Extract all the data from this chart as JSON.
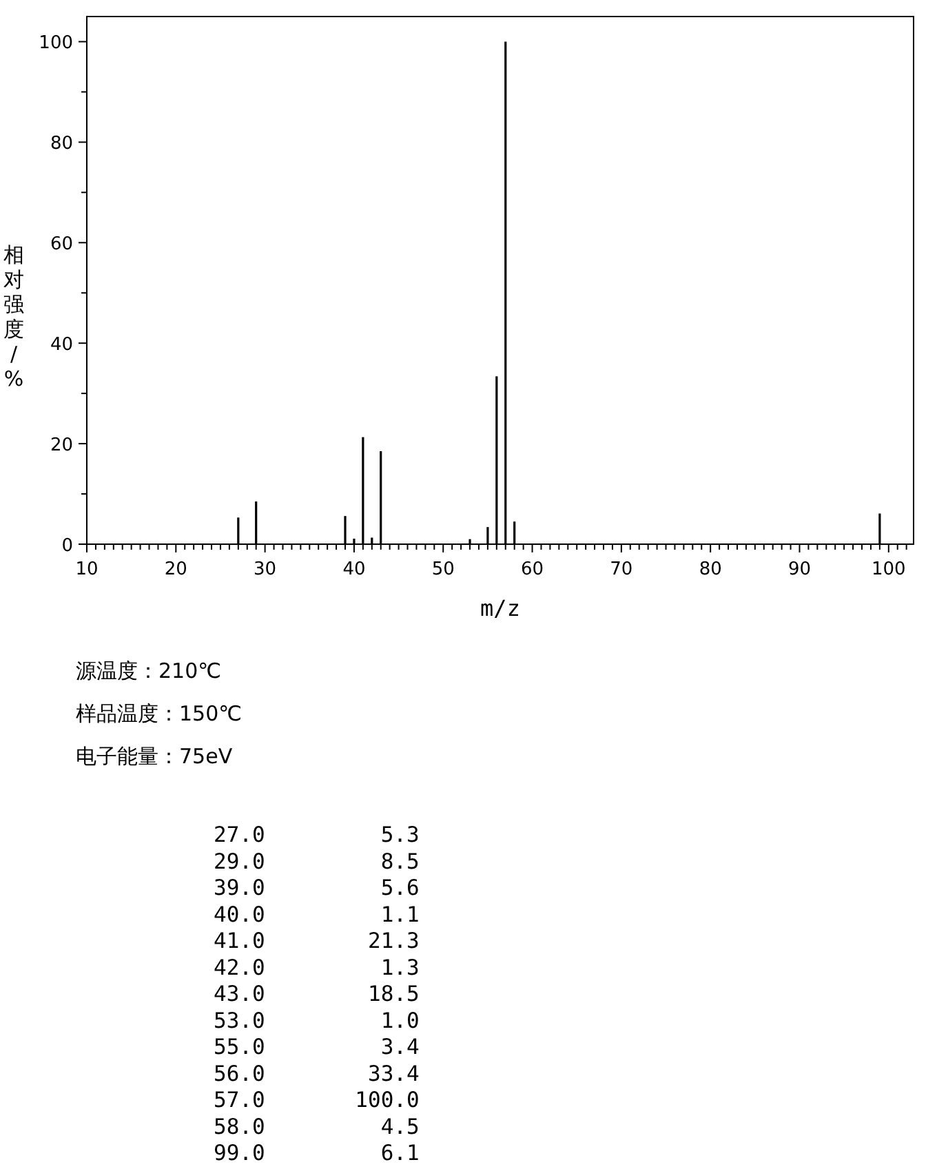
{
  "chart_data": {
    "type": "bar",
    "xlabel": "m/z",
    "ylabel": "相对强度/%",
    "x": [
      27.0,
      29.0,
      39.0,
      40.0,
      41.0,
      42.0,
      43.0,
      53.0,
      55.0,
      56.0,
      57.0,
      58.0,
      99.0
    ],
    "values": [
      5.3,
      8.5,
      5.6,
      1.1,
      21.3,
      1.3,
      18.5,
      1.0,
      3.4,
      33.4,
      100.0,
      4.5,
      6.1
    ],
    "color": "#000000",
    "xlim": [
      10,
      102.8
    ],
    "ylim": [
      0,
      105
    ],
    "xticks": [
      10,
      {
        "value": 11,
        "label": null
      },
      {
        "value": 12,
        "label": null
      },
      {
        "value": 13,
        "label": null
      },
      {
        "value": 14,
        "label": null
      },
      {
        "value": 15,
        "label": null
      },
      {
        "value": 16,
        "label": null
      },
      {
        "value": 17,
        "label": null
      },
      {
        "value": 18,
        "label": null
      },
      {
        "value": 19,
        "label": null
      },
      20,
      {
        "value": 21,
        "label": null
      },
      {
        "value": 22,
        "label": null
      },
      {
        "value": 23,
        "label": null
      },
      {
        "value": 24,
        "label": null
      },
      {
        "value": 25,
        "label": null
      },
      {
        "value": 26,
        "label": null
      },
      {
        "value": 27,
        "label": null
      },
      {
        "value": 28,
        "label": null
      },
      {
        "value": 29,
        "label": null
      },
      30,
      {
        "value": 31,
        "label": null
      },
      {
        "value": 32,
        "label": null
      },
      {
        "value": 33,
        "label": null
      },
      {
        "value": 34,
        "label": null
      },
      {
        "value": 35,
        "label": null
      },
      {
        "value": 36,
        "label": null
      },
      {
        "value": 37,
        "label": null
      },
      {
        "value": 38,
        "label": null
      },
      {
        "value": 39,
        "label": null
      },
      40,
      {
        "value": 41,
        "label": null
      },
      {
        "value": 42,
        "label": null
      },
      {
        "value": 43,
        "label": null
      },
      {
        "value": 44,
        "label": null
      },
      {
        "value": 45,
        "label": null
      },
      {
        "value": 46,
        "label": null
      },
      {
        "value": 47,
        "label": null
      },
      {
        "value": 48,
        "label": null
      },
      {
        "value": 49,
        "label": null
      },
      50,
      {
        "value": 51,
        "label": null
      },
      {
        "value": 52,
        "label": null
      },
      {
        "value": 53,
        "label": null
      },
      {
        "value": 54,
        "label": null
      },
      {
        "value": 55,
        "label": null
      },
      {
        "value": 56,
        "label": null
      },
      {
        "value": 57,
        "label": null
      },
      {
        "value": 58,
        "label": null
      },
      {
        "value": 59,
        "label": null
      },
      60,
      {
        "value": 61,
        "label": null
      },
      {
        "value": 62,
        "label": null
      },
      {
        "value": 63,
        "label": null
      },
      {
        "value": 64,
        "label": null
      },
      {
        "value": 65,
        "label": null
      },
      {
        "value": 66,
        "label": null
      },
      {
        "value": 67,
        "label": null
      },
      {
        "value": 68,
        "label": null
      },
      {
        "value": 69,
        "label": null
      },
      70,
      {
        "value": 71,
        "label": null
      },
      {
        "value": 72,
        "label": null
      },
      {
        "value": 73,
        "label": null
      },
      {
        "value": 74,
        "label": null
      },
      {
        "value": 75,
        "label": null
      },
      {
        "value": 76,
        "label": null
      },
      {
        "value": 77,
        "label": null
      },
      {
        "value": 78,
        "label": null
      },
      {
        "value": 79,
        "label": null
      },
      80,
      {
        "value": 81,
        "label": null
      },
      {
        "value": 82,
        "label": null
      },
      {
        "value": 83,
        "label": null
      },
      {
        "value": 84,
        "label": null
      },
      {
        "value": 85,
        "label": null
      },
      {
        "value": 86,
        "label": null
      },
      {
        "value": 87,
        "label": null
      },
      {
        "value": 88,
        "label": null
      },
      {
        "value": 89,
        "label": null
      },
      90,
      {
        "value": 91,
        "label": null
      },
      {
        "value": 92,
        "label": null
      },
      {
        "value": 93,
        "label": null
      },
      {
        "value": 94,
        "label": null
      },
      {
        "value": 95,
        "label": null
      },
      {
        "value": 96,
        "label": null
      },
      {
        "value": 97,
        "label": null
      },
      {
        "value": 98,
        "label": null
      },
      {
        "value": 99,
        "label": null
      },
      100,
      {
        "value": 101,
        "label": null
      },
      {
        "value": 102,
        "label": null
      }
    ],
    "yticks": [
      0,
      {
        "value": 10,
        "label": null
      },
      20,
      {
        "value": 30,
        "label": null
      },
      40,
      {
        "value": 50,
        "label": null
      },
      60,
      {
        "value": 70,
        "label": null
      },
      80,
      {
        "value": 90,
        "label": null
      },
      100
    ],
    "annotations": [
      "源温度：210℃",
      "样品温度：150℃",
      "电子能量：75eV",
      "27.0         5.3",
      "29.0         8.5",
      "39.0         5.6",
      "40.0         1.1",
      "41.0        21.3",
      "42.0         1.3",
      "43.0        18.5",
      "53.0         1.0",
      "55.0         3.4",
      "56.0        33.4",
      "57.0       100.0",
      "58.0         4.5",
      "99.0         6.1"
    ]
  }
}
